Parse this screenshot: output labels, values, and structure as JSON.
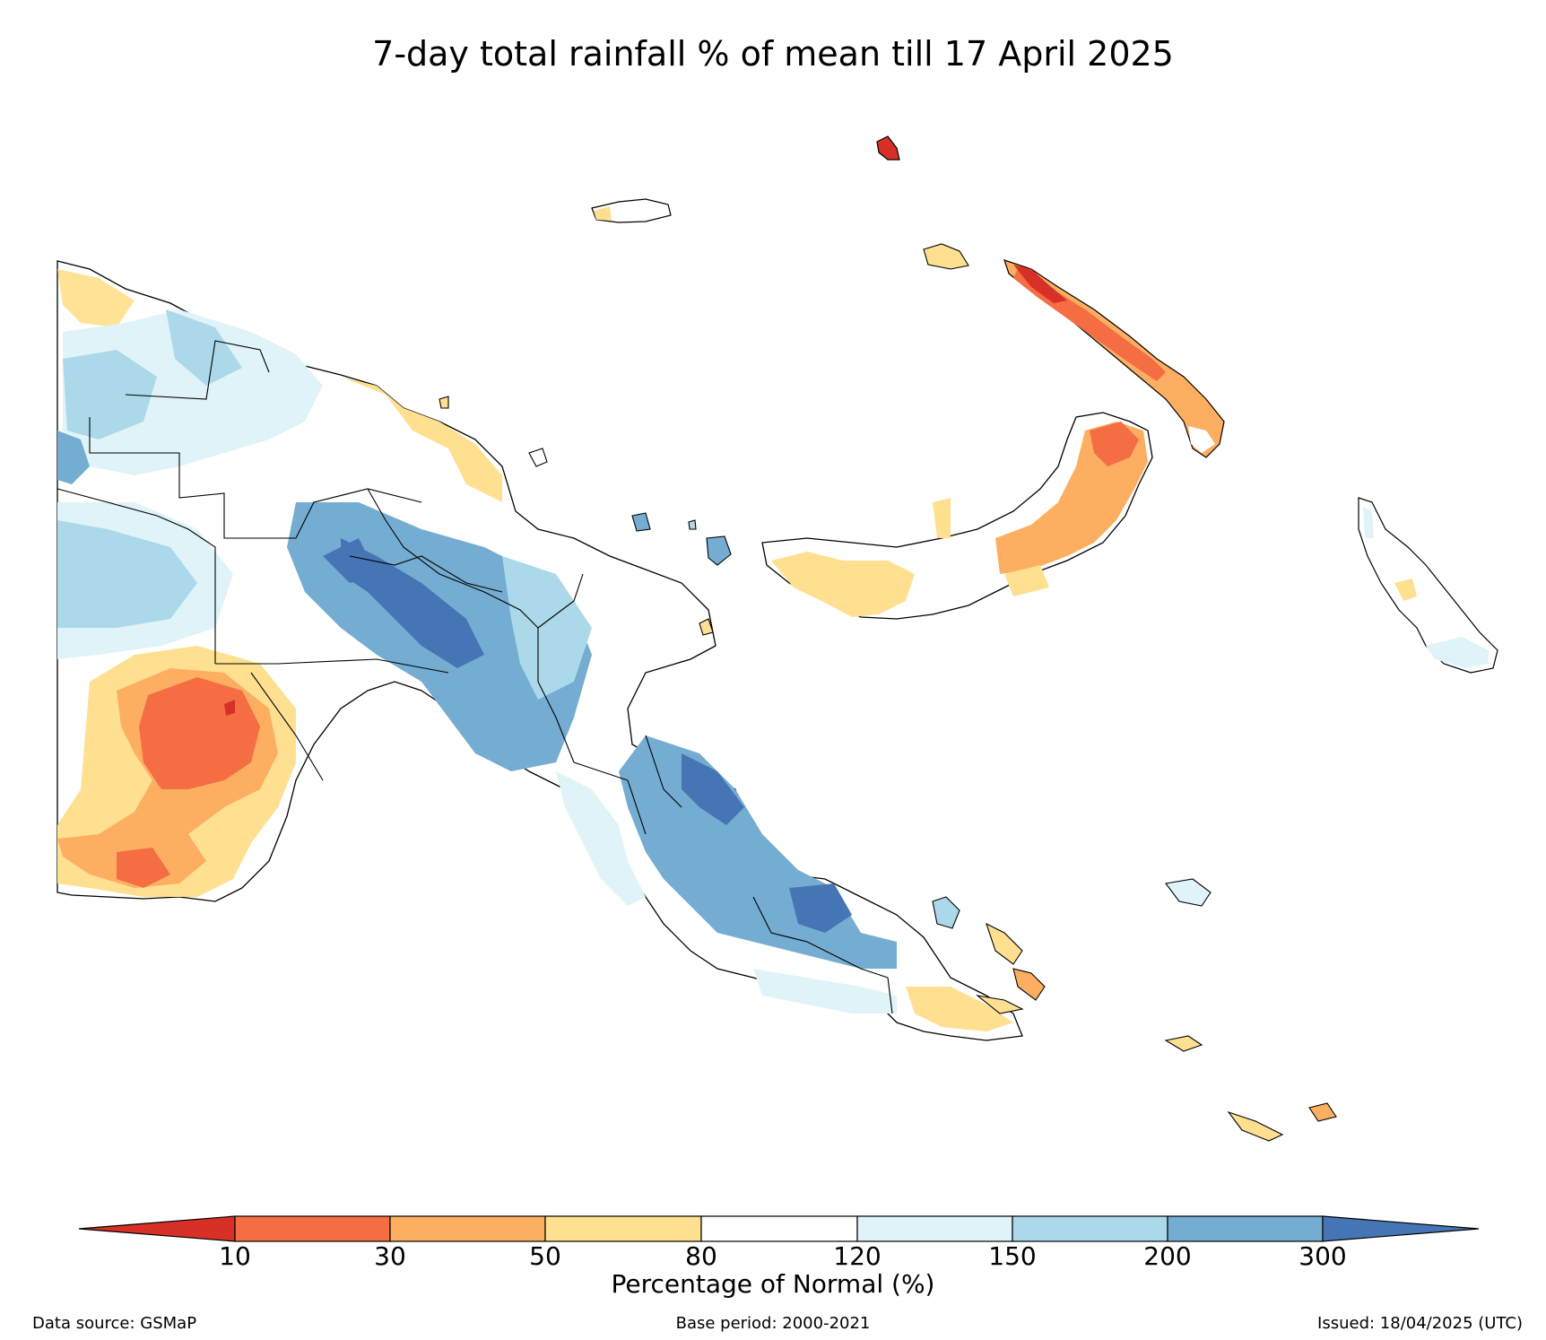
{
  "title": "7-day total rainfall % of mean till 17 April 2025",
  "colorbar": {
    "label": "Percentage of Normal (%)",
    "ticks": [
      "10",
      "30",
      "50",
      "80",
      "120",
      "150",
      "200",
      "300"
    ],
    "colors": {
      "below_10": "#d73027",
      "10_30": "#f46d43",
      "30_50": "#fdae61",
      "50_80": "#fee090",
      "80_120": "#ffffff",
      "120_150": "#e0f3f8",
      "150_200": "#abd9e9",
      "200_300": "#74add1",
      "above_300": "#4575b4"
    }
  },
  "footer": {
    "source": "Data source: GSMaP",
    "base_period": "Base period: 2000-2021",
    "issued": "Issued: 18/04/2025 (UTC)"
  }
}
